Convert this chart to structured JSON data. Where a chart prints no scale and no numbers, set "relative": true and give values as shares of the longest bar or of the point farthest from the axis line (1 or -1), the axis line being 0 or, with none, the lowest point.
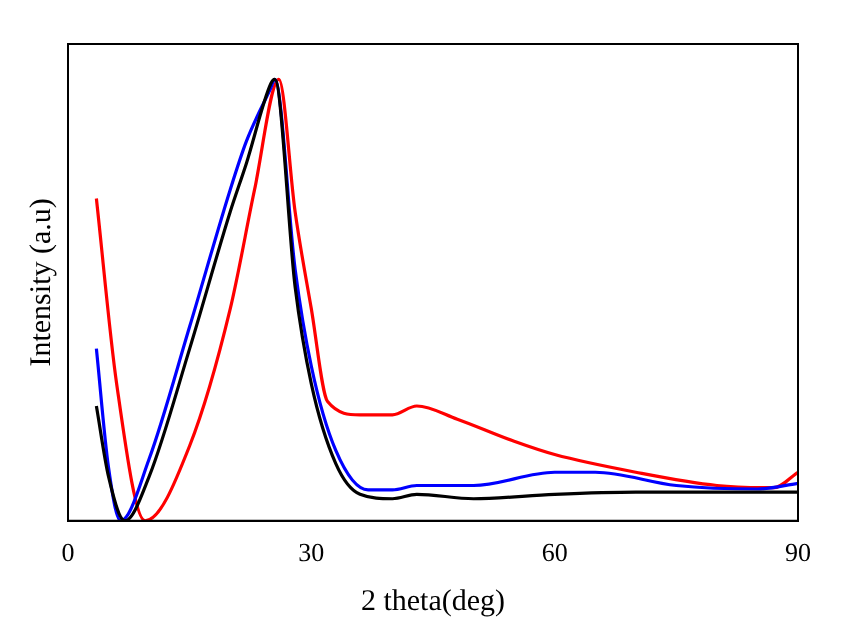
{
  "chart_data": {
    "type": "line",
    "xlabel": "2 theta(deg)",
    "ylabel": "Intensity (a.u)",
    "relative": true,
    "xlim": [
      0,
      90
    ],
    "xticks": [
      0,
      30,
      60,
      90
    ],
    "grid": false,
    "legend": false,
    "marker": "none",
    "line_style": "solid",
    "series": [
      {
        "color": "#000000",
        "x": [
          3.5,
          5,
          7,
          10,
          15,
          20,
          22,
          25,
          25.5,
          28,
          30,
          33,
          36,
          40,
          43,
          50,
          60,
          70,
          80,
          90
        ],
        "values": [
          0.26,
          0.1,
          0,
          0.1,
          0.39,
          0.7,
          0.81,
          0.99,
          1,
          0.53,
          0.31,
          0.13,
          0.06,
          0.05,
          0.06,
          0.05,
          0.06,
          0.065,
          0.065,
          0.065
        ]
      },
      {
        "color": "#0000ff",
        "x": [
          3.5,
          5,
          6.5,
          10,
          15,
          20,
          22,
          25,
          25.5,
          28,
          30,
          33,
          37,
          40,
          43,
          50,
          60,
          65,
          75,
          85,
          90
        ],
        "values": [
          0.39,
          0.12,
          0,
          0.14,
          0.44,
          0.75,
          0.86,
          0.98,
          1,
          0.57,
          0.35,
          0.16,
          0.07,
          0.07,
          0.08,
          0.08,
          0.11,
          0.11,
          0.08,
          0.072,
          0.085
        ]
      },
      {
        "color": "#ff0000",
        "x": [
          3.5,
          6,
          9.5,
          15,
          20,
          23,
          26,
          28,
          30,
          32,
          36,
          40,
          43,
          48,
          55,
          60,
          70,
          80,
          87,
          90
        ],
        "values": [
          0.73,
          0.31,
          0,
          0.17,
          0.48,
          0.75,
          1,
          0.7,
          0.48,
          0.27,
          0.24,
          0.24,
          0.26,
          0.23,
          0.18,
          0.15,
          0.11,
          0.08,
          0.075,
          0.11
        ]
      }
    ]
  }
}
